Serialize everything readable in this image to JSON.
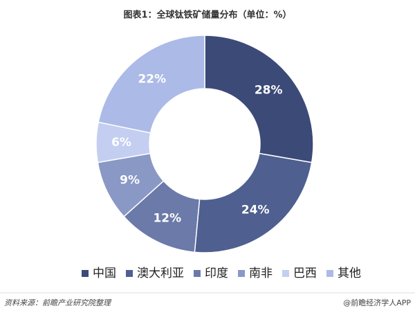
{
  "chart_data": {
    "type": "donut",
    "title": "图表1：全球钛铁矿储量分布（单位：%）",
    "categories": [
      "中国",
      "澳大利亚",
      "印度",
      "南非",
      "巴西",
      "其他"
    ],
    "values": [
      28,
      24,
      12,
      9,
      6,
      22
    ],
    "value_labels": [
      "28%",
      "24%",
      "12%",
      "9%",
      "6%",
      "22%"
    ],
    "colors": [
      "#3c4a78",
      "#4e5f90",
      "#6b7aa9",
      "#8a98c6",
      "#c3cef1",
      "#abbae7"
    ],
    "legend": "bottom",
    "source": "资料来源：前瞻产业研究院整理",
    "credit": "@前瞻经济学人APP"
  }
}
